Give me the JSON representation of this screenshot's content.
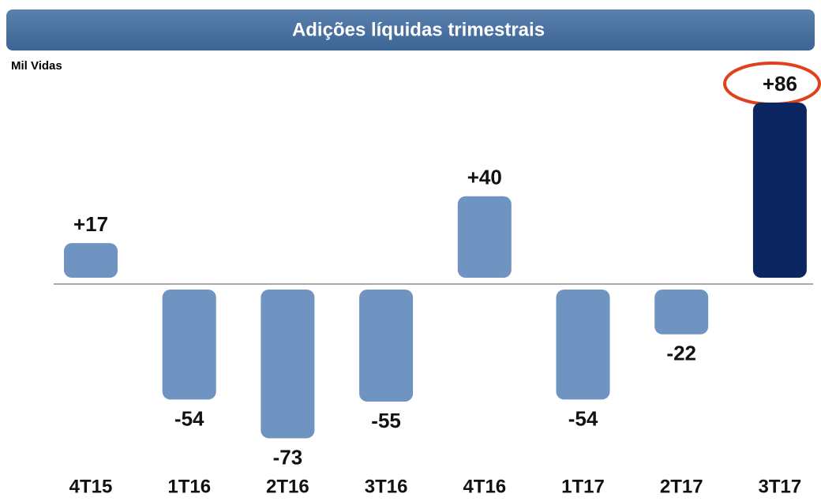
{
  "chart_data": {
    "type": "bar",
    "title": "Adições líquidas trimestrais",
    "y_label": "Mil Vidas",
    "categories": [
      "4T15",
      "1T16",
      "2T16",
      "3T16",
      "4T16",
      "1T17",
      "2T17",
      "3T17"
    ],
    "values": [
      17,
      -54,
      -73,
      -55,
      40,
      -54,
      -22,
      86
    ],
    "value_labels": [
      "+17",
      "-54",
      "-73",
      "-55",
      "+40",
      "-54",
      "-22",
      "+86"
    ],
    "colors": [
      "#7094c2",
      "#7094c2",
      "#7094c2",
      "#7094c2",
      "#7094c2",
      "#7094c2",
      "#7094c2",
      "#0b2660"
    ]
  }
}
